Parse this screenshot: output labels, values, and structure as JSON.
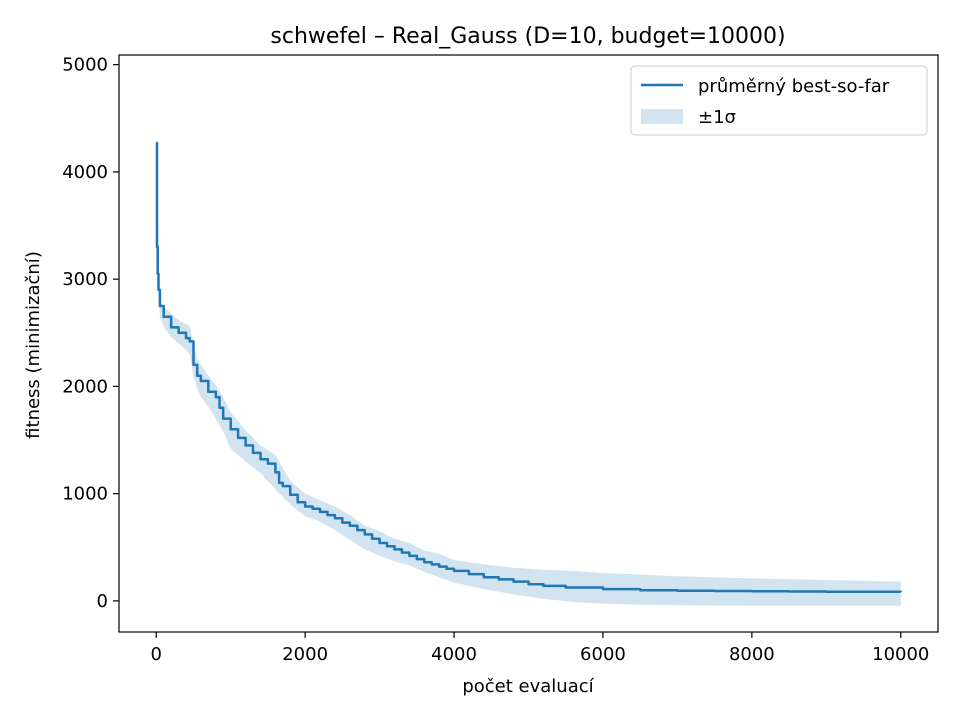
{
  "chart_data": {
    "type": "line",
    "title": "schwefel – Real_Gauss (D=10, budget=10000)",
    "xlabel": "počet evaluací",
    "ylabel": "fitness (minimizační)",
    "xlim": [
      -500,
      10500
    ],
    "ylim": [
      -290,
      5090
    ],
    "xticks": [
      0,
      2000,
      4000,
      6000,
      8000,
      10000
    ],
    "xtick_labels": [
      "0",
      "2000",
      "4000",
      "6000",
      "8000",
      "10000"
    ],
    "yticks": [
      0,
      1000,
      2000,
      3000,
      4000,
      5000
    ],
    "ytick_labels": [
      "0",
      "1000",
      "2000",
      "3000",
      "4000",
      "5000"
    ],
    "grid": false,
    "legend_position": "top-right",
    "series": [
      {
        "name": "průměrný best-so-far",
        "color": "#1f77b4",
        "x": [
          0,
          10,
          20,
          30,
          50,
          100,
          200,
          300,
          400,
          450,
          500,
          550,
          600,
          700,
          800,
          850,
          900,
          1000,
          1100,
          1200,
          1300,
          1400,
          1500,
          1600,
          1650,
          1700,
          1800,
          1900,
          2000,
          2100,
          2200,
          2300,
          2400,
          2500,
          2600,
          2700,
          2800,
          2900,
          3000,
          3100,
          3200,
          3300,
          3400,
          3500,
          3600,
          3700,
          3800,
          3900,
          4000,
          4200,
          4400,
          4600,
          4800,
          5000,
          5200,
          5500,
          6000,
          6500,
          7000,
          7500,
          8000,
          8500,
          9000,
          9500,
          10000
        ],
        "y": [
          4270,
          3300,
          3050,
          2900,
          2750,
          2650,
          2550,
          2500,
          2450,
          2420,
          2200,
          2100,
          2050,
          1950,
          1900,
          1800,
          1700,
          1600,
          1520,
          1450,
          1380,
          1320,
          1280,
          1200,
          1100,
          1070,
          990,
          920,
          880,
          860,
          830,
          800,
          770,
          730,
          700,
          660,
          620,
          580,
          540,
          510,
          480,
          450,
          420,
          390,
          360,
          340,
          320,
          300,
          280,
          250,
          220,
          200,
          180,
          155,
          140,
          125,
          110,
          100,
          95,
          92,
          90,
          88,
          86,
          85,
          84
        ]
      }
    ],
    "band": {
      "name": "±1σ",
      "color": "#1f77b4",
      "opacity": 0.2,
      "x": [
        0,
        50,
        100,
        200,
        300,
        400,
        450,
        500,
        550,
        600,
        700,
        800,
        900,
        1000,
        1200,
        1400,
        1600,
        1800,
        2000,
        2200,
        2400,
        2600,
        2800,
        3000,
        3200,
        3400,
        3600,
        3800,
        4000,
        4400,
        4800,
        5200,
        5600,
        6000,
        6500,
        7000,
        8000,
        9000,
        10000
      ],
      "upper": [
        4270,
        2800,
        2740,
        2680,
        2620,
        2580,
        2560,
        2400,
        2260,
        2200,
        2100,
        2010,
        1900,
        1760,
        1590,
        1450,
        1360,
        1120,
        1000,
        940,
        880,
        800,
        700,
        650,
        580,
        540,
        470,
        440,
        380,
        340,
        310,
        290,
        280,
        260,
        245,
        230,
        210,
        195,
        180
      ],
      "lower": [
        4270,
        2640,
        2560,
        2460,
        2400,
        2340,
        2300,
        2100,
        1980,
        1900,
        1810,
        1700,
        1580,
        1420,
        1300,
        1190,
        1040,
        900,
        790,
        740,
        660,
        570,
        480,
        420,
        370,
        330,
        270,
        220,
        170,
        110,
        60,
        20,
        -10,
        -25,
        -35,
        -40,
        -45,
        -45,
        -45
      ]
    }
  }
}
